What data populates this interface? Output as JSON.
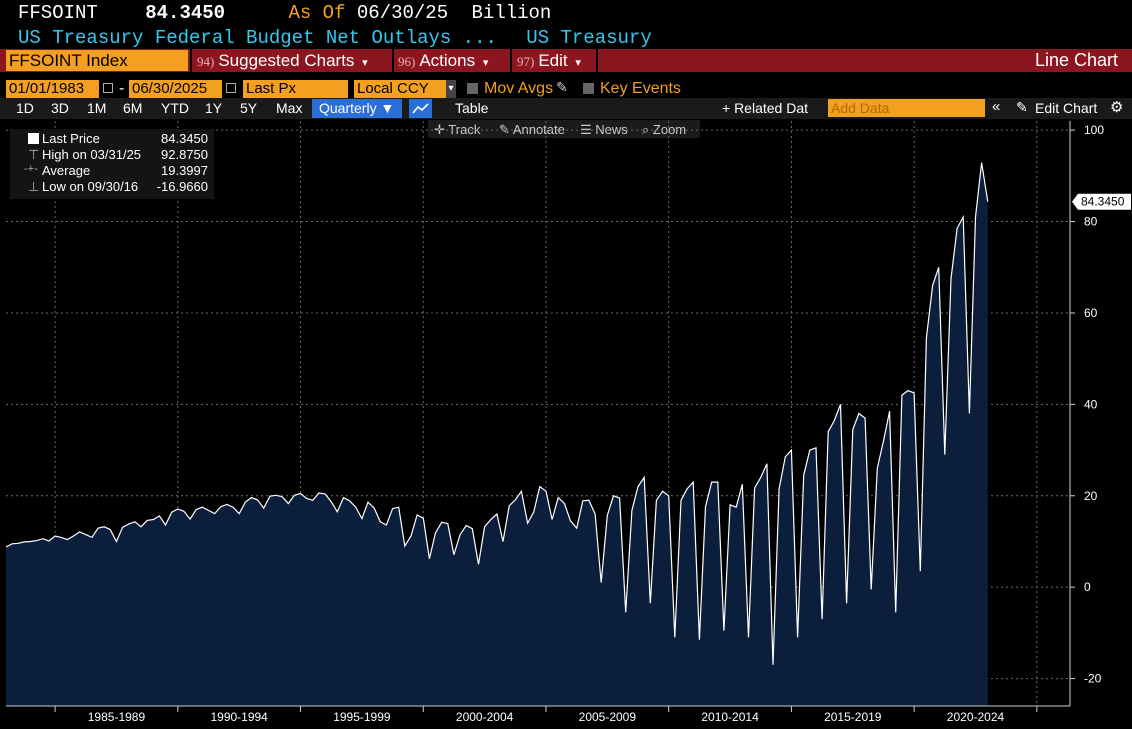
{
  "header": {
    "ticker": "FFSOINT",
    "price": "84.3450",
    "as_of_label": "As Of",
    "as_of_date": "06/30/25",
    "unit": "Billion",
    "description": "US Treasury Federal Budget Net Outlays ...",
    "source": "US Treasury"
  },
  "toolbar": {
    "security": "FFSOINT Index",
    "suggested_num": "94)",
    "suggested": "Suggested Charts",
    "actions_num": "96)",
    "actions": "Actions",
    "edit_num": "97)",
    "edit": "Edit",
    "chart_type": "Line Chart"
  },
  "controls": {
    "start_date": "01/01/1983",
    "dash": "-",
    "end_date": "06/30/2025",
    "field": "Last Px",
    "currency": "Local CCY",
    "mov_avgs": "Mov Avgs",
    "key_events": "Key Events"
  },
  "periods": [
    "1D",
    "3D",
    "1M",
    "6M",
    "YTD",
    "1Y",
    "5Y",
    "Max"
  ],
  "frequency": "Quarterly ▼",
  "table_label": "Table",
  "related_data": "+ Related Dat",
  "add_data_placeholder": "Add Data",
  "edit_chart": "Edit Chart",
  "tools": {
    "track": "Track",
    "annotate": "Annotate",
    "news": "News",
    "zoom": "Zoom"
  },
  "legend": {
    "last_label": "Last Price",
    "last_value": "84.3450",
    "high_label": "High on 03/31/25",
    "high_value": "92.8750",
    "avg_label": "Average",
    "avg_value": "19.3997",
    "low_label": "Low on 09/30/16",
    "low_value": "-16.9660"
  },
  "colors": {
    "accent": "#f39f1f",
    "header_bar": "#8b1620",
    "area_fill": "#0b1f3d",
    "line": "#ffffff",
    "title_blue": "#35c8ee"
  },
  "chart_data": {
    "type": "area",
    "frequency": "quarterly",
    "x_start": "1983-Q1",
    "x_end": "2025-Q2",
    "xtick_labels": [
      "1985-1989",
      "1990-1994",
      "1995-1999",
      "2000-2004",
      "2005-2009",
      "2010-2014",
      "2015-2019",
      "2020-2024"
    ],
    "yticks": [
      -20,
      0,
      20,
      40,
      60,
      80,
      100
    ],
    "ylim": [
      -26,
      102
    ],
    "last_value_label": "84.3450",
    "grid": true,
    "values": [
      8.8,
      9.5,
      9.6,
      9.9,
      10.0,
      10.2,
      10.6,
      10.1,
      11.2,
      10.9,
      10.4,
      11.2,
      12.1,
      11.5,
      10.9,
      12.9,
      13.2,
      12.6,
      10.0,
      13.1,
      13.8,
      14.3,
      13.2,
      14.6,
      14.8,
      15.6,
      13.6,
      16.4,
      17.1,
      16.6,
      14.9,
      17.0,
      17.5,
      16.8,
      16.1,
      17.6,
      18.1,
      17.5,
      16.1,
      18.6,
      19.6,
      19.1,
      17.3,
      19.9,
      20.1,
      19.8,
      18.3,
      20.1,
      20.5,
      19.4,
      19.0,
      20.6,
      20.4,
      18.7,
      16.5,
      19.6,
      18.9,
      17.5,
      15.0,
      18.6,
      17.3,
      14.3,
      13.6,
      17.2,
      17.5,
      9.0,
      11.2,
      15.8,
      15.1,
      6.2,
      11.9,
      14.2,
      13.9,
      7.1,
      11.5,
      13.5,
      12.8,
      5.0,
      13.2,
      14.8,
      16.0,
      10.0,
      17.8,
      19.1,
      21.0,
      14.0,
      16.4,
      22.0,
      21.0,
      14.8,
      19.6,
      18.3,
      14.5,
      12.9,
      18.9,
      19.0,
      16.0,
      1.0,
      15.7,
      20.0,
      19.5,
      -5.5,
      16.8,
      22.0,
      24.0,
      -3.5,
      19.0,
      21.0,
      20.0,
      -11.0,
      19.0,
      21.5,
      23.0,
      -11.5,
      17.6,
      23.0,
      23.0,
      -9.5,
      18.0,
      17.5,
      22.5,
      -11.0,
      21.7,
      24.0,
      27.0,
      -17.0,
      21.5,
      28.5,
      30.0,
      -11.0,
      24.5,
      30.0,
      30.5,
      -7.0,
      34.0,
      36.5,
      40.0,
      -3.5,
      34.5,
      38.0,
      37.0,
      -0.5,
      26.0,
      32.0,
      38.5,
      -5.5,
      42.0,
      43.0,
      42.5,
      3.5,
      54.5,
      66.0,
      70.0,
      29.0,
      67.5,
      78.5,
      81.0,
      38.0,
      81.0,
      92.875,
      84.345
    ]
  }
}
